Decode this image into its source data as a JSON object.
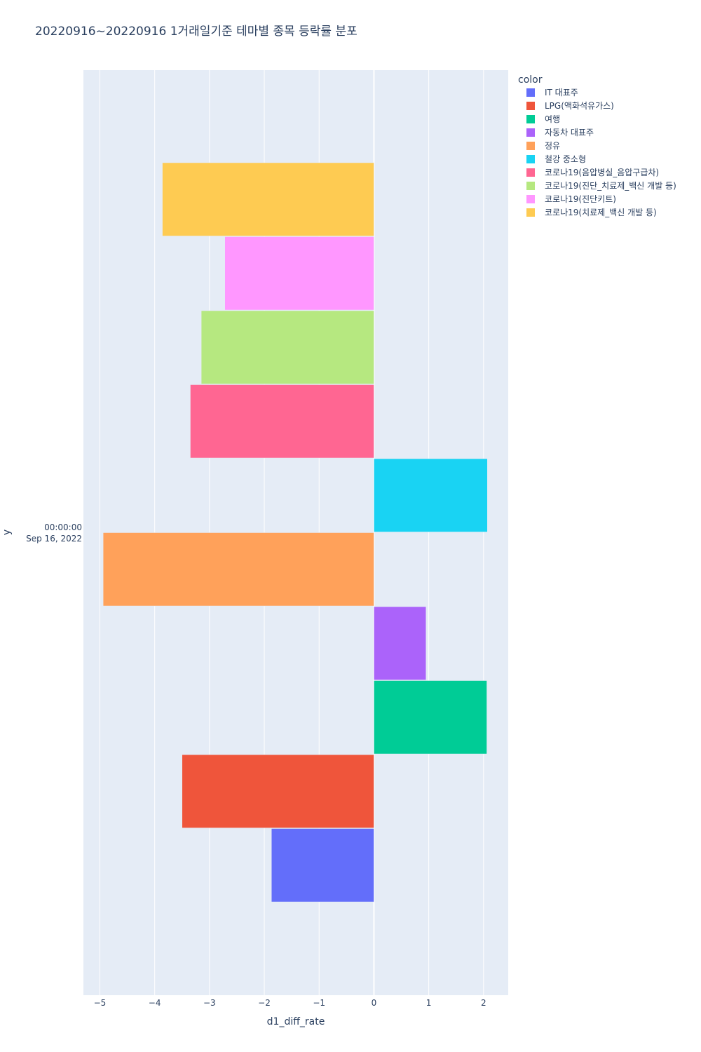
{
  "chart_data": {
    "type": "bar",
    "orientation": "horizontal",
    "barmode": "group",
    "title": "20220916~20220916 1거래일기준 테마별 종목 등락률 분포",
    "xlabel": "d1_diff_rate",
    "ylabel": "y",
    "y_category": {
      "time": "00:00:00",
      "date": "Sep 16, 2022"
    },
    "xlim": [
      -5.3,
      2.45
    ],
    "xticks": [
      -5,
      -4,
      -3,
      -2,
      -1,
      0,
      1,
      2
    ],
    "xtick_labels": [
      "−5",
      "−4",
      "−3",
      "−2",
      "−1",
      "0",
      "1",
      "2"
    ],
    "grid": true,
    "legend_title": "color",
    "legend_position": "top-right",
    "series": [
      {
        "name": "IT 대표주",
        "value": -1.87,
        "color": "#636efa"
      },
      {
        "name": "LPG(액화석유가스)",
        "value": -3.5,
        "color": "#EF553B"
      },
      {
        "name": "여행",
        "value": 2.06,
        "color": "#00cc96"
      },
      {
        "name": "자동차 대표주",
        "value": 0.95,
        "color": "#ab63fa"
      },
      {
        "name": "정유",
        "value": -4.94,
        "color": "#FFA15A"
      },
      {
        "name": "철강 중소형",
        "value": 2.07,
        "color": "#19d3f3"
      },
      {
        "name": "코로나19(음압병실_음압구급차)",
        "value": -3.35,
        "color": "#FF6692"
      },
      {
        "name": "코로나19(진단_치료제_백신 개발 등)",
        "value": -3.15,
        "color": "#B6E880"
      },
      {
        "name": "코로나19(진단키트)",
        "value": -2.72,
        "color": "#FF97FF"
      },
      {
        "name": "코로나19(치료제_백신 개발 등)",
        "value": -3.86,
        "color": "#FECB52"
      }
    ]
  }
}
